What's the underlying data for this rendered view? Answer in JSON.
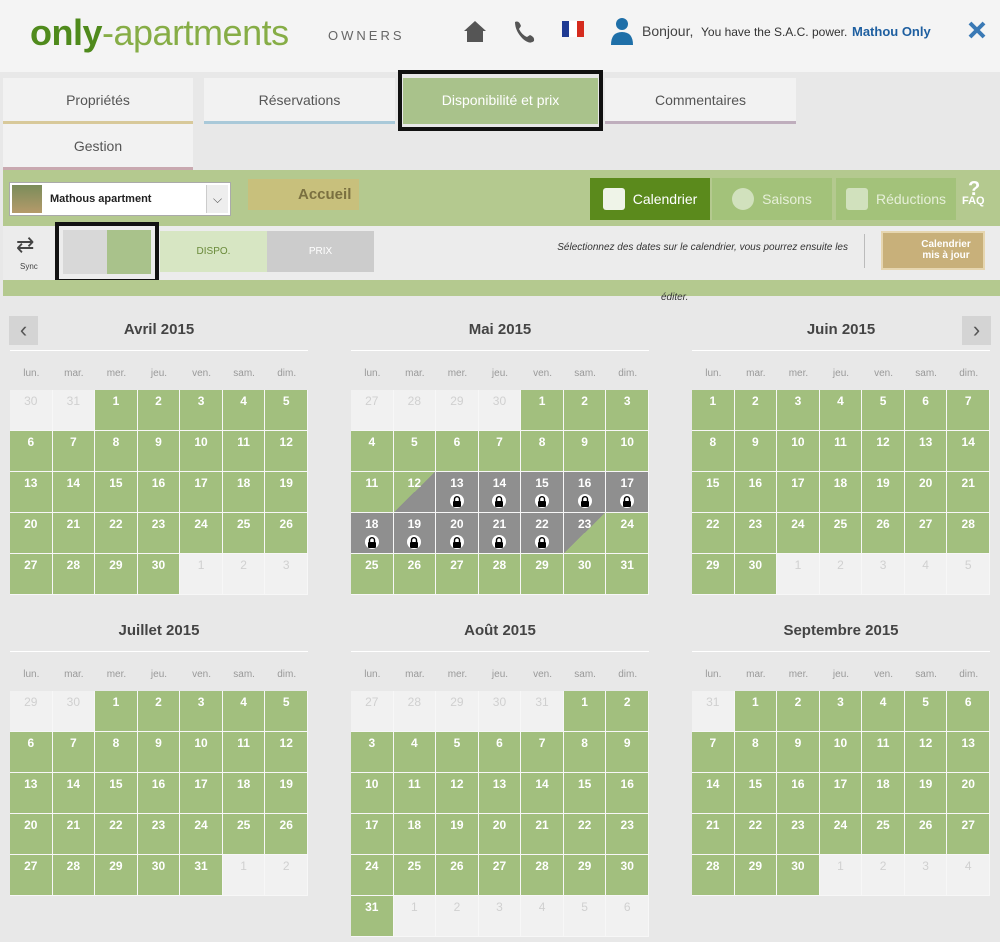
{
  "header": {
    "logo_only": "only",
    "logo_rest": "-apartments",
    "logo_owners": "OWNERS",
    "greeting": "Bonjour,",
    "power": "You have the S.A.C. power.",
    "user": "Mathou Only"
  },
  "tabs": [
    "Propriétés",
    "Réservations",
    "Disponibilité et prix",
    "Commentaires",
    "Gestion"
  ],
  "toolbar": {
    "property": "Mathous apartment",
    "home": "Accueil",
    "buttons": [
      "Calendrier",
      "Saisons",
      "Réductions"
    ],
    "faq": "FAQ"
  },
  "subbar": {
    "sync": "Sync",
    "dispo": "DISPO.",
    "prix": "PRIX",
    "message": "Sélectionnez des dates sur le calendrier, vous pourrez ensuite les",
    "message_end": "éditer.",
    "update": [
      "Calendrier",
      "mis à jour"
    ]
  },
  "weekdays": [
    "lun.",
    "mar.",
    "mer.",
    "jeu.",
    "ven.",
    "sam.",
    "dim."
  ],
  "months": [
    {
      "title": "Avril 2015",
      "before": [
        30,
        31
      ],
      "days": [
        1,
        2,
        3,
        4,
        5,
        6,
        7,
        8,
        9,
        10,
        11,
        12,
        13,
        14,
        15,
        16,
        17,
        18,
        19,
        20,
        21,
        22,
        23,
        24,
        25,
        26,
        27,
        28,
        29,
        30
      ],
      "after": [
        1,
        2,
        3
      ]
    },
    {
      "title": "Mai 2015",
      "before": [
        27,
        28,
        29,
        30
      ],
      "days": [
        1,
        2,
        3,
        4,
        5,
        6,
        7,
        8,
        9,
        10,
        11,
        12,
        13,
        14,
        15,
        16,
        17,
        18,
        19,
        20,
        21,
        22,
        23,
        24,
        25,
        26,
        27,
        28,
        29,
        30,
        31
      ],
      "after": [],
      "booking": {
        "arrival": 12,
        "departure": 23
      }
    },
    {
      "title": "Juin 2015",
      "before": [],
      "days": [
        1,
        2,
        3,
        4,
        5,
        6,
        7,
        8,
        9,
        10,
        11,
        12,
        13,
        14,
        15,
        16,
        17,
        18,
        19,
        20,
        21,
        22,
        23,
        24,
        25,
        26,
        27,
        28,
        29,
        30
      ],
      "after": [
        1,
        2,
        3,
        4,
        5
      ]
    },
    {
      "title": "Juillet 2015",
      "before": [
        29,
        30
      ],
      "days": [
        1,
        2,
        3,
        4,
        5,
        6,
        7,
        8,
        9,
        10,
        11,
        12,
        13,
        14,
        15,
        16,
        17,
        18,
        19,
        20,
        21,
        22,
        23,
        24,
        25,
        26,
        27,
        28,
        29,
        30,
        31
      ],
      "after": [
        1,
        2
      ]
    },
    {
      "title": "Août 2015",
      "before": [
        27,
        28,
        29,
        30,
        31
      ],
      "days": [
        1,
        2,
        3,
        4,
        5,
        6,
        7,
        8,
        9,
        10,
        11,
        12,
        13,
        14,
        15,
        16,
        17,
        18,
        19,
        20,
        21,
        22,
        23,
        24,
        25,
        26,
        27,
        28,
        29,
        30,
        31
      ],
      "after": [
        1,
        2,
        3,
        4,
        5,
        6
      ]
    },
    {
      "title": "Septembre 2015",
      "before": [
        31
      ],
      "days": [
        1,
        2,
        3,
        4,
        5,
        6,
        7,
        8,
        9,
        10,
        11,
        12,
        13,
        14,
        15,
        16,
        17,
        18,
        19,
        20,
        21,
        22,
        23,
        24,
        25,
        26,
        27,
        28,
        29,
        30
      ],
      "after": [
        1,
        2,
        3,
        4
      ]
    }
  ]
}
